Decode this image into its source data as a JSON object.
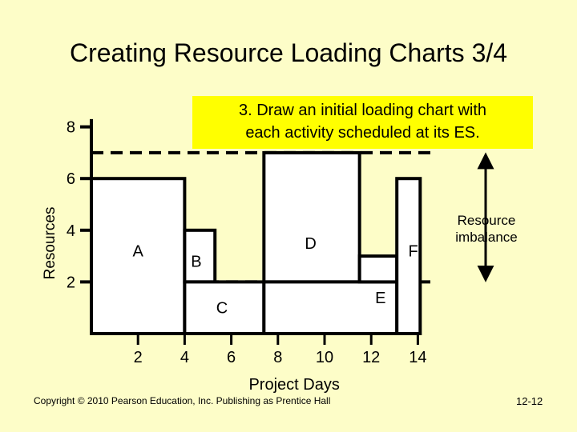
{
  "slide": {
    "title": "Creating Resource Loading Charts 3/4",
    "callout_lines": [
      "3. Draw an initial loading chart with",
      "each activity scheduled at its ES."
    ],
    "copyright": "Copyright © 2010 Pearson Education, Inc. Publishing as Prentice Hall",
    "page_number": "12-12"
  },
  "colors": {
    "background": "#fdfdc8",
    "callout": "#ffff00",
    "ink": "#000000",
    "box_fill": "#ffffff"
  },
  "chart_data": {
    "type": "bar",
    "ylabel": "Resources",
    "xlabel": "Project Days",
    "x_ticks": [
      "2",
      "4",
      "6",
      "8",
      "10",
      "12",
      "14"
    ],
    "y_ticks": [
      "2",
      "4",
      "6",
      "8"
    ],
    "xlim": [
      0,
      15
    ],
    "ylim": [
      0,
      8
    ],
    "activities": [
      {
        "name": "A",
        "start": 0,
        "end": 4,
        "bottom": 0,
        "top": 6,
        "label_x": 2,
        "label_y": 3.2
      },
      {
        "name": "B",
        "start": 4,
        "end": 5.3,
        "bottom": 2,
        "top": 4,
        "label_x": 4.5,
        "label_y": 2.8
      },
      {
        "name": "C",
        "start": 4,
        "end": 7.4,
        "bottom": 0,
        "top": 2,
        "label_x": 5.6,
        "label_y": 1.0
      },
      {
        "name": "D",
        "start": 7.4,
        "end": 11.5,
        "bottom": 2,
        "top": 7,
        "label_x": 9.4,
        "label_y": 3.5
      },
      {
        "name": "E",
        "start": 7.4,
        "end": 13.1,
        "bottom": 0,
        "top": 2,
        "label_x": 12.4,
        "label_y": 1.4
      },
      {
        "name": "F",
        "start": 11.5,
        "end": 13.1,
        "bottom": 2,
        "top": 3,
        "label_x": 13.8,
        "label_y": 3.2
      },
      {
        "name": "F",
        "start": 13.1,
        "end": 14.1,
        "bottom": 0,
        "top": 6,
        "label_x": 13.8,
        "label_y": 3.2
      }
    ],
    "reference_lines": [
      7,
      2
    ],
    "annotation": {
      "lines": [
        "Resource",
        "imbalance"
      ],
      "arrow_from": 7,
      "arrow_to": 2
    }
  }
}
